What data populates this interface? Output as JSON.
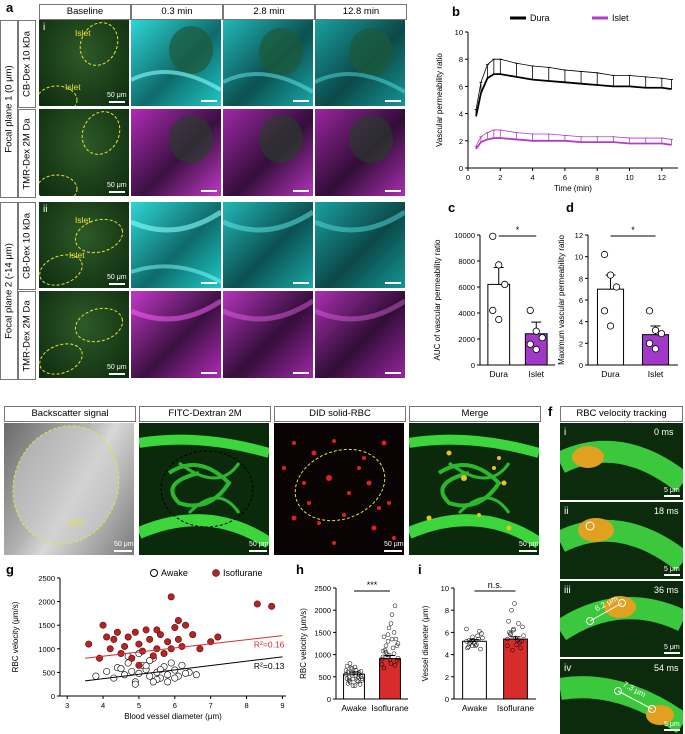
{
  "panel_a": {
    "label": "a",
    "columns": [
      "Baseline",
      "0.3 min",
      "2.8 min",
      "12.8 min"
    ],
    "focal_planes": [
      "Focal plane 1 (0 μm)",
      "Focal plane 2 (-14 μm)"
    ],
    "channels": [
      "CB-Dex 10 kDa",
      "TMR-Dex 2M Da"
    ],
    "roman": [
      "i",
      "ii"
    ],
    "islet_label": "Islet",
    "scale": "50 μm",
    "colors": {
      "cyan": "#1ec8c8",
      "magenta": "#c238c8",
      "green": "#1e4a1c"
    }
  },
  "panel_b": {
    "label": "b"
  },
  "panel_c": {
    "label": "c"
  },
  "panel_d": {
    "label": "d"
  },
  "panel_e": {
    "label": "e",
    "headers": [
      "Backscatter signal",
      "FITC-Dextran 2M",
      "DID solid-RBC",
      "Merge"
    ],
    "islet_label": "Islet",
    "scale": "50 μm"
  },
  "panel_f": {
    "label": "f",
    "header": "RBC velocity tracking",
    "frames": [
      {
        "roman": "i",
        "time": "0 ms",
        "dist": ""
      },
      {
        "roman": "ii",
        "time": "18 ms",
        "dist": ""
      },
      {
        "roman": "iii",
        "time": "36 ms",
        "dist": "6.2 μm"
      },
      {
        "roman": "iv",
        "time": "54 ms",
        "dist": "7.3 μm"
      }
    ],
    "scale": "5 μm"
  },
  "panel_g": {
    "label": "g"
  },
  "panel_h": {
    "label": "h"
  },
  "panel_i": {
    "label": "i"
  },
  "chart_data": [
    {
      "type": "line",
      "panel": "b",
      "xlabel": "Time (min)",
      "ylabel": "Vascular permeability ratio",
      "xlim": [
        0,
        13
      ],
      "ylim": [
        0,
        10
      ],
      "xticks": [
        0,
        2,
        4,
        6,
        8,
        10,
        12
      ],
      "yticks": [
        0,
        2,
        4,
        6,
        8,
        10
      ],
      "legend": "top-right",
      "series": [
        {
          "name": "Dura",
          "color": "#000000",
          "x": [
            0.5,
            0.8,
            1.2,
            1.6,
            2,
            3,
            4,
            5,
            6,
            7,
            8,
            9,
            10,
            11,
            12,
            12.6
          ],
          "y": [
            3.8,
            5.5,
            6.6,
            6.9,
            6.9,
            6.7,
            6.5,
            6.4,
            6.3,
            6.2,
            6.1,
            6.0,
            6.0,
            5.9,
            5.9,
            5.8
          ],
          "err": [
            0.5,
            0.8,
            1.0,
            1.1,
            1.1,
            1.0,
            1.0,
            1.0,
            0.9,
            0.9,
            0.9,
            0.8,
            0.8,
            0.8,
            0.7,
            0.7
          ]
        },
        {
          "name": "Islet",
          "color": "#b23cc8",
          "x": [
            0.5,
            0.8,
            1.2,
            1.6,
            2,
            3,
            4,
            5,
            6,
            7,
            8,
            9,
            10,
            11,
            12,
            12.6
          ],
          "y": [
            1.4,
            1.9,
            2.1,
            2.2,
            2.2,
            2.1,
            2.0,
            2.0,
            2.0,
            1.9,
            1.9,
            1.9,
            1.8,
            1.8,
            1.8,
            1.7
          ],
          "err": [
            0.2,
            0.4,
            0.5,
            0.6,
            0.6,
            0.5,
            0.5,
            0.5,
            0.4,
            0.4,
            0.4,
            0.4,
            0.4,
            0.4,
            0.4,
            0.4
          ]
        }
      ]
    },
    {
      "type": "bar",
      "panel": "c",
      "ylabel": "AUC of vascular permeability ratio",
      "ylim": [
        0,
        10000
      ],
      "yticks": [
        0,
        2000,
        4000,
        6000,
        8000,
        10000
      ],
      "categories": [
        "Dura",
        "Islet"
      ],
      "values": [
        6200,
        2400
      ],
      "err": [
        1300,
        900
      ],
      "colors": [
        "#ffffff",
        "#a238c8"
      ],
      "points": [
        [
          9900,
          7700,
          6200,
          4200,
          3500
        ],
        [
          4200,
          2600,
          2100,
          1600,
          1200
        ]
      ],
      "significance": "*"
    },
    {
      "type": "bar",
      "panel": "d",
      "ylabel": "Maximum vascular permeability ratio",
      "ylim": [
        0,
        12
      ],
      "yticks": [
        0,
        2,
        4,
        6,
        8,
        10,
        12
      ],
      "categories": [
        "Dura",
        "Islet"
      ],
      "values": [
        7.0,
        2.8
      ],
      "err": [
        1.3,
        0.8
      ],
      "colors": [
        "#ffffff",
        "#a238c8"
      ],
      "points": [
        [
          10.2,
          8.3,
          7.2,
          5.0,
          3.6
        ],
        [
          5.0,
          3.2,
          2.9,
          2.0,
          1.5
        ]
      ],
      "significance": "*"
    },
    {
      "type": "scatter",
      "panel": "g",
      "xlabel": "Blood vessel diameter (μm)",
      "ylabel": "RBC velocity (μm/s)",
      "xlim": [
        2.8,
        9.1
      ],
      "ylim": [
        0,
        2500
      ],
      "xticks": [
        3,
        4,
        5,
        6,
        7,
        8,
        9
      ],
      "yticks": [
        0,
        500,
        1000,
        1500,
        2000,
        2500
      ],
      "legend": "top",
      "series": [
        {
          "name": "Awake",
          "marker": "open-circle",
          "x": [
            3.8,
            4.1,
            4.3,
            4.4,
            4.6,
            4.7,
            4.8,
            4.9,
            5.0,
            5.1,
            5.2,
            5.3,
            5.4,
            5.5,
            5.6,
            5.7,
            5.8,
            5.9,
            6.0,
            6.1,
            6.2,
            6.4,
            6.6,
            5.0,
            4.9,
            5.3,
            5.5,
            4.5,
            5.8,
            6.3,
            4.7,
            5.2,
            5.6,
            6.0,
            5.4
          ],
          "y": [
            420,
            520,
            380,
            600,
            450,
            700,
            520,
            300,
            480,
            650,
            560,
            420,
            800,
            500,
            380,
            620,
            450,
            700,
            550,
            420,
            650,
            500,
            450,
            900,
            250,
            750,
            350,
            580,
            300,
            480,
            840,
            640,
            560,
            380,
            300
          ]
        },
        {
          "name": "Isoflurane",
          "marker": "filled-circle",
          "color": "#b52424",
          "x": [
            3.6,
            3.9,
            4.0,
            4.2,
            4.3,
            4.5,
            4.6,
            4.7,
            4.8,
            4.9,
            5.0,
            5.1,
            5.2,
            5.3,
            5.4,
            5.5,
            5.6,
            5.7,
            5.8,
            5.9,
            6.0,
            6.1,
            6.2,
            6.3,
            6.5,
            6.7,
            7.0,
            7.2,
            5.9,
            8.3,
            8.7,
            4.4,
            5.0,
            5.5,
            6.1,
            4.1
          ],
          "y": [
            1100,
            800,
            1500,
            1000,
            1200,
            900,
            1050,
            1250,
            800,
            1350,
            1100,
            950,
            1400,
            1200,
            850,
            1000,
            1300,
            900,
            1150,
            1000,
            1450,
            1200,
            1050,
            1500,
            1300,
            1000,
            1150,
            1250,
            2100,
            1950,
            1900,
            1350,
            650,
            1400,
            1600,
            1250
          ]
        }
      ],
      "fits": [
        {
          "series": "Isoflurane",
          "r2_label": "R²=0.16",
          "x": [
            3.5,
            9.0
          ],
          "y": [
            800,
            1280
          ],
          "color": "#d23030"
        },
        {
          "series": "Awake",
          "r2_label": "R²=0.13",
          "x": [
            3.5,
            9.0
          ],
          "y": [
            320,
            830
          ],
          "color": "#000000"
        }
      ]
    },
    {
      "type": "bar",
      "panel": "h",
      "ylabel": "RBC velocity (μm/s)",
      "ylim": [
        0,
        2500
      ],
      "yticks": [
        0,
        500,
        1000,
        1500,
        2000,
        2500
      ],
      "categories": [
        "Awake",
        "Isoflurane"
      ],
      "values": [
        560,
        910
      ],
      "err": [
        50,
        70
      ],
      "colors": [
        "#ffffff",
        "#d82c2c"
      ],
      "significance": "***"
    },
    {
      "type": "bar",
      "panel": "i",
      "ylabel": "Vessel diameter (μm)",
      "ylim": [
        0,
        10
      ],
      "yticks": [
        0,
        2,
        4,
        6,
        8,
        10
      ],
      "categories": [
        "Awake",
        "Isoflurane"
      ],
      "values": [
        5.2,
        5.4
      ],
      "err": [
        0.15,
        0.2
      ],
      "colors": [
        "#ffffff",
        "#d82c2c"
      ],
      "significance": "n.s."
    }
  ]
}
